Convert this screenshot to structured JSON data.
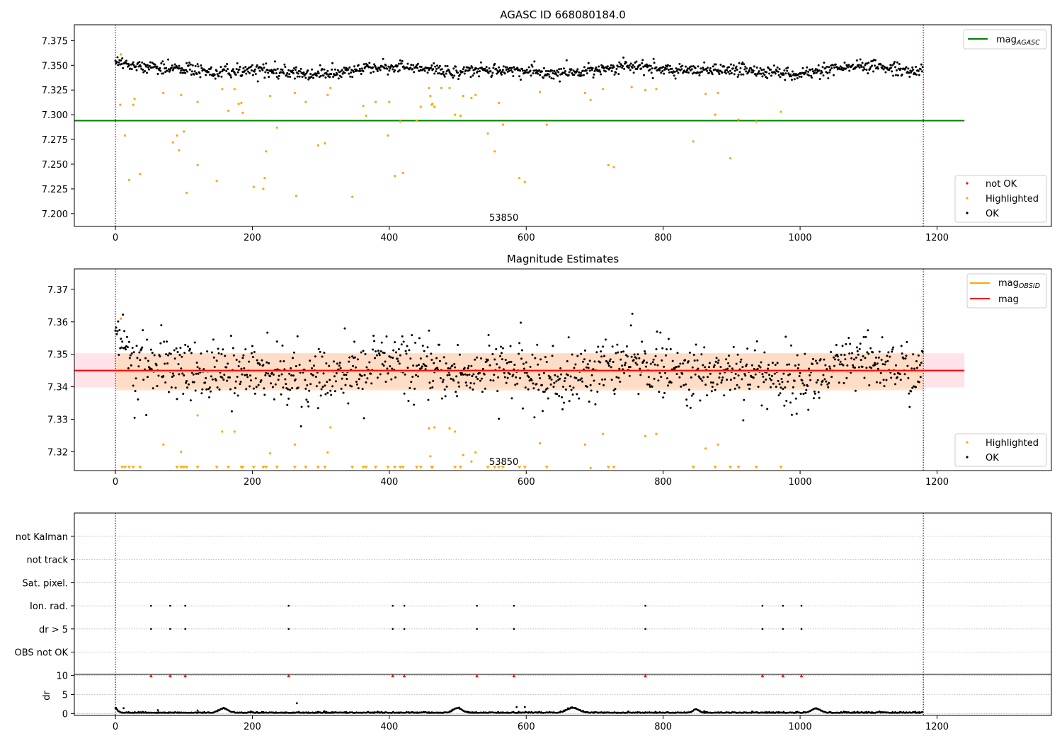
{
  "chart_data": [
    {
      "type": "scatter",
      "title": "AGASC ID 668080184.0",
      "xlim": [
        -60,
        1367
      ],
      "ylim": [
        7.187,
        7.391
      ],
      "xticks": [
        0,
        200,
        400,
        600,
        800,
        1000,
        1200
      ],
      "yticks": [
        7.2,
        7.225,
        7.25,
        7.275,
        7.3,
        7.325,
        7.35,
        7.375
      ],
      "ytick_labels": [
        "7.200",
        "7.225",
        "7.250",
        "7.275",
        "7.300",
        "7.325",
        "7.350",
        "7.375"
      ],
      "obs_boundaries": [
        0,
        1180
      ],
      "obsid_label": "53850",
      "obsid_label_x": 588,
      "mag_agasc": 7.294,
      "mag_agasc_x_range": [
        -60,
        1240
      ],
      "ok_band": {
        "center": 7.345,
        "amplitude": 0.004,
        "noise": 0.004
      },
      "n_ok_points": 1180,
      "highlighted_points": [
        [
          8,
          7.361
        ],
        [
          7,
          7.31
        ],
        [
          14,
          7.279
        ],
        [
          20,
          7.234
        ],
        [
          26,
          7.31
        ],
        [
          28,
          7.316
        ],
        [
          36,
          7.24
        ],
        [
          70,
          7.322
        ],
        [
          84,
          7.272
        ],
        [
          90,
          7.279
        ],
        [
          93,
          7.264
        ],
        [
          96,
          7.32
        ],
        [
          100,
          7.283
        ],
        [
          104,
          7.221
        ],
        [
          120,
          7.313
        ],
        [
          120,
          7.249
        ],
        [
          148,
          7.233
        ],
        [
          156,
          7.326
        ],
        [
          165,
          7.304
        ],
        [
          174,
          7.326
        ],
        [
          180,
          7.311
        ],
        [
          184,
          7.312
        ],
        [
          186,
          7.302
        ],
        [
          202,
          7.227
        ],
        [
          216,
          7.225
        ],
        [
          218,
          7.236
        ],
        [
          220,
          7.263
        ],
        [
          226,
          7.319
        ],
        [
          236,
          7.287
        ],
        [
          262,
          7.322
        ],
        [
          264,
          7.218
        ],
        [
          278,
          7.313
        ],
        [
          296,
          7.269
        ],
        [
          306,
          7.271
        ],
        [
          310,
          7.32
        ],
        [
          314,
          7.327
        ],
        [
          346,
          7.217
        ],
        [
          362,
          7.309
        ],
        [
          366,
          7.299
        ],
        [
          380,
          7.313
        ],
        [
          398,
          7.279
        ],
        [
          400,
          7.313
        ],
        [
          408,
          7.238
        ],
        [
          416,
          7.293
        ],
        [
          420,
          7.241
        ],
        [
          440,
          7.294
        ],
        [
          446,
          7.308
        ],
        [
          458,
          7.327
        ],
        [
          460,
          7.319
        ],
        [
          462,
          7.31
        ],
        [
          463,
          7.311
        ],
        [
          466,
          7.308
        ],
        [
          476,
          7.327
        ],
        [
          488,
          7.327
        ],
        [
          496,
          7.3
        ],
        [
          504,
          7.299
        ],
        [
          508,
          7.319
        ],
        [
          520,
          7.317
        ],
        [
          526,
          7.32
        ],
        [
          544,
          7.281
        ],
        [
          554,
          7.263
        ],
        [
          560,
          7.312
        ],
        [
          566,
          7.29
        ],
        [
          590,
          7.236
        ],
        [
          598,
          7.232
        ],
        [
          620,
          7.323
        ],
        [
          630,
          7.29
        ],
        [
          686,
          7.322
        ],
        [
          694,
          7.315
        ],
        [
          712,
          7.326
        ],
        [
          720,
          7.249
        ],
        [
          728,
          7.247
        ],
        [
          754,
          7.328
        ],
        [
          774,
          7.325
        ],
        [
          790,
          7.326
        ],
        [
          844,
          7.273
        ],
        [
          862,
          7.321
        ],
        [
          876,
          7.3
        ],
        [
          880,
          7.322
        ],
        [
          898,
          7.256
        ],
        [
          910,
          7.295
        ],
        [
          936,
          7.293
        ],
        [
          972,
          7.303
        ]
      ],
      "legend": {
        "upper": [
          {
            "label": "mag",
            "subscript": "AGASC",
            "color": "#008000"
          }
        ],
        "lower": [
          {
            "label": "not OK",
            "color": "#ff0000"
          },
          {
            "label": "Highlighted",
            "color": "#ffa500"
          },
          {
            "label": "OK",
            "color": "#000000"
          }
        ]
      },
      "colors": {
        "ok": "#000000",
        "highlighted": "#ffa500",
        "not_ok": "#ff0000",
        "agasc_line": "#008000",
        "boundary": "#800080"
      }
    },
    {
      "type": "scatter",
      "title": "Magnitude Estimates",
      "xlim": [
        -60,
        1367
      ],
      "ylim": [
        7.3142,
        7.3763
      ],
      "xticks": [
        0,
        200,
        400,
        600,
        800,
        1000,
        1200
      ],
      "yticks": [
        7.32,
        7.33,
        7.34,
        7.35,
        7.36,
        7.37
      ],
      "ytick_labels": [
        "7.32",
        "7.33",
        "7.34",
        "7.35",
        "7.36",
        "7.37"
      ],
      "obs_boundaries": [
        0,
        1180
      ],
      "obsid_label": "53850",
      "obsid_label_x": 588,
      "mag": 7.345,
      "mag_band": [
        7.3398,
        7.3503
      ],
      "mag_x_range": [
        -60,
        1240
      ],
      "mag_obsid": 7.3447,
      "mag_obsid_band": [
        7.3389,
        7.3503
      ],
      "mag_obsid_x_range": [
        0,
        1180
      ],
      "ok_band": {
        "center": 7.3445,
        "amplitude": 0.003,
        "noise": 0.0055
      },
      "n_ok_points": 1180,
      "highlighted_points": [
        [
          8,
          7.361
        ],
        [
          70,
          7.3222
        ],
        [
          96,
          7.32
        ],
        [
          120,
          7.3312
        ],
        [
          156,
          7.3262
        ],
        [
          174,
          7.3262
        ],
        [
          226,
          7.3195
        ],
        [
          262,
          7.3222
        ],
        [
          310,
          7.3198
        ],
        [
          314,
          7.3275
        ],
        [
          458,
          7.3272
        ],
        [
          460,
          7.3186
        ],
        [
          466,
          7.3275
        ],
        [
          488,
          7.3272
        ],
        [
          496,
          7.3262
        ],
        [
          508,
          7.319
        ],
        [
          520,
          7.317
        ],
        [
          526,
          7.3198
        ],
        [
          620,
          7.3226
        ],
        [
          686,
          7.3222
        ],
        [
          694,
          7.315
        ],
        [
          712,
          7.3255
        ],
        [
          774,
          7.3248
        ],
        [
          790,
          7.3255
        ],
        [
          862,
          7.321
        ],
        [
          880,
          7.3222
        ]
      ],
      "clipped_x": [
        10,
        14,
        20,
        26,
        36,
        90,
        96,
        100,
        104,
        120,
        148,
        165,
        184,
        186,
        202,
        216,
        220,
        236,
        262,
        278,
        296,
        306,
        346,
        362,
        366,
        380,
        398,
        408,
        416,
        420,
        440,
        446,
        462,
        463,
        496,
        504,
        544,
        554,
        560,
        566,
        590,
        598,
        630,
        720,
        728,
        844,
        876,
        898,
        910,
        936,
        972
      ],
      "legend": {
        "upper": [
          {
            "label": "mag",
            "subscript": "OBSID",
            "color": "#ffa500"
          },
          {
            "label": "mag",
            "subscript": "",
            "color": "#ff0000"
          }
        ],
        "lower": [
          {
            "label": "Highlighted",
            "color": "#ffa500"
          },
          {
            "label": "OK",
            "color": "#000000"
          }
        ]
      },
      "colors": {
        "ok": "#000000",
        "highlighted": "#ffa500",
        "mag_line": "#ff0000",
        "mag_band": "#ffc0cb",
        "obsid_line": "#ffa500",
        "obsid_band": "#ffdab9",
        "boundary": "#800080"
      }
    },
    {
      "type": "scatter",
      "title": "",
      "xlim": [
        -60,
        1367
      ],
      "xticks": [
        0,
        200,
        400,
        600,
        800,
        1000,
        1200
      ],
      "flag_rows": [
        "not Kalman",
        "not track",
        "Sat. pixel.",
        "Ion. rad.",
        "dr > 5",
        "OBS not OK"
      ],
      "flag_points": {
        "Ion. rad.": [
          52,
          80,
          102,
          253,
          405,
          422,
          528,
          582,
          774,
          945,
          975,
          1002
        ],
        "dr > 5": [
          52,
          80,
          102,
          253,
          405,
          422,
          528,
          582,
          774,
          945,
          975,
          1002
        ]
      },
      "obs_boundaries": [
        0,
        1180
      ],
      "colors": {
        "flag": "#000000",
        "grid": "#b0b0b0",
        "boundary": "#800080"
      }
    },
    {
      "type": "scatter",
      "title": "",
      "ylabel": "dr",
      "xlim": [
        -60,
        1367
      ],
      "ylim": [
        -0.5,
        10.3
      ],
      "xticks": [
        0,
        200,
        400,
        600,
        800,
        1000,
        1200
      ],
      "yticks": [
        0,
        5,
        10
      ],
      "ytick_labels": [
        "0",
        "5",
        "10"
      ],
      "clipped_x": [
        52,
        80,
        102,
        253,
        405,
        422,
        528,
        582,
        774,
        945,
        975,
        1002
      ],
      "clipped_y": 9.9,
      "bumps": [
        {
          "center": 0,
          "width": 4,
          "height": 1.2
        },
        {
          "center": 158,
          "width": 9,
          "height": 1.1
        },
        {
          "center": 500,
          "width": 9,
          "height": 1.2
        },
        {
          "center": 668,
          "width": 12,
          "height": 1.3
        },
        {
          "center": 848,
          "width": 6,
          "height": 0.9
        },
        {
          "center": 1023,
          "width": 9,
          "height": 1.1
        }
      ],
      "outliers": [
        [
          265,
          2.7
        ],
        [
          586,
          1.7
        ],
        [
          598,
          1.7
        ],
        [
          12,
          1.4
        ],
        [
          62,
          0.9
        ],
        [
          120,
          0.8
        ],
        [
          305,
          0.6
        ],
        [
          860,
          0.6
        ],
        [
          930,
          0.5
        ]
      ],
      "obs_boundaries": [
        0,
        1180
      ],
      "colors": {
        "points": "#000000",
        "clipped": "#ff0000",
        "boundary": "#800080"
      }
    }
  ]
}
